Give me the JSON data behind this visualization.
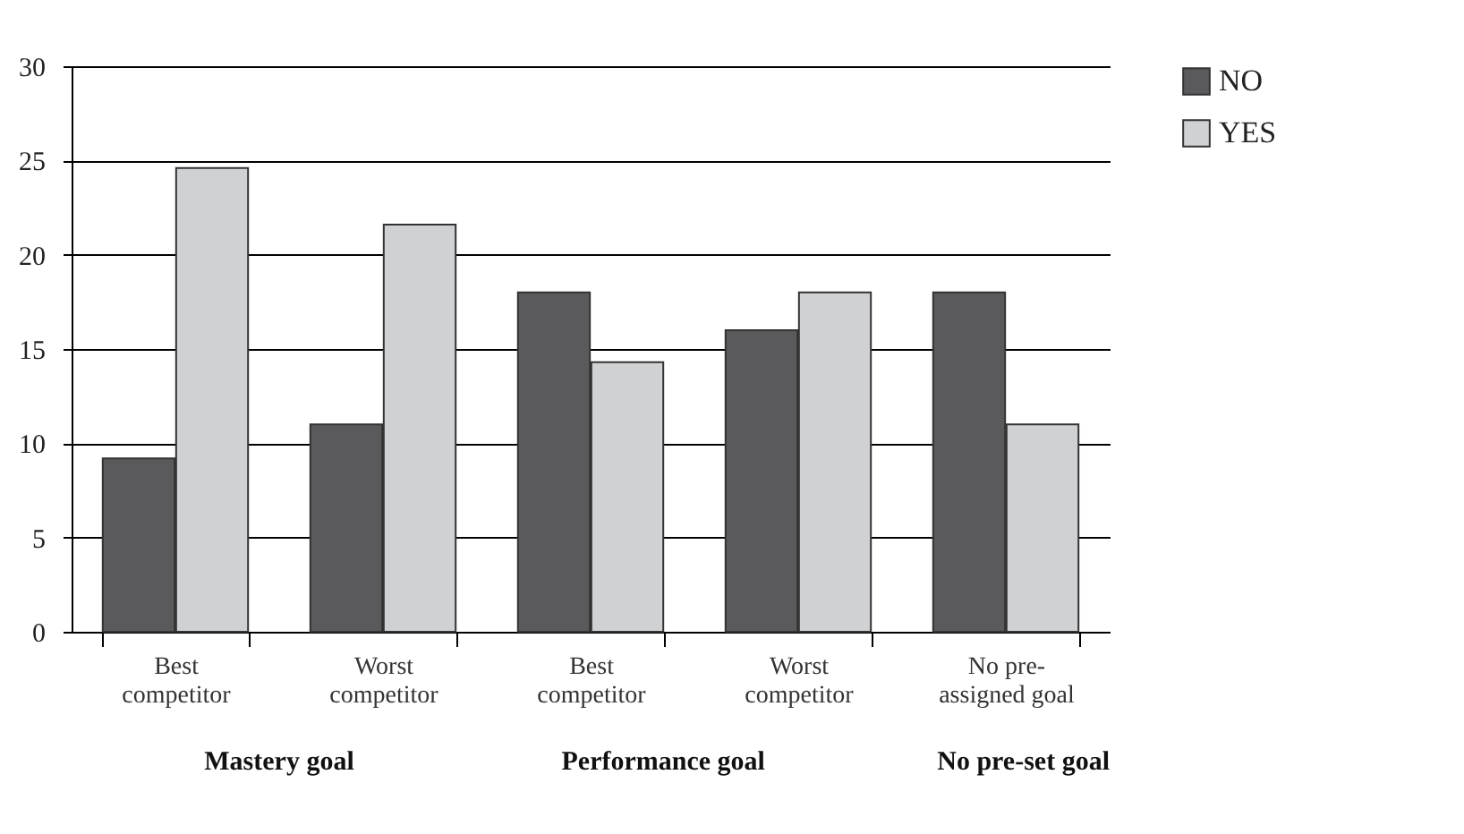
{
  "chart_data": {
    "type": "bar",
    "categories": [
      "Best\ncompetitor",
      "Worst\ncompetitor",
      "Best\ncompetitor",
      "Worst\ncompetitor",
      "No pre-\nassigned goal"
    ],
    "series": [
      {
        "name": "NO",
        "color": "#5a5a5c",
        "values": [
          9.2,
          11.0,
          18.0,
          16.0,
          18.0
        ]
      },
      {
        "name": "YES",
        "color": "#d0d1d3",
        "values": [
          24.6,
          21.6,
          14.3,
          18.0,
          11.0
        ]
      }
    ],
    "ylim": [
      0,
      30
    ],
    "yticks": [
      0,
      5,
      10,
      15,
      20,
      25,
      30
    ],
    "grid": "y",
    "legend": "right",
    "annotations": [
      "Mastery goal",
      "Performance goal",
      "No pre-set goal"
    ]
  }
}
